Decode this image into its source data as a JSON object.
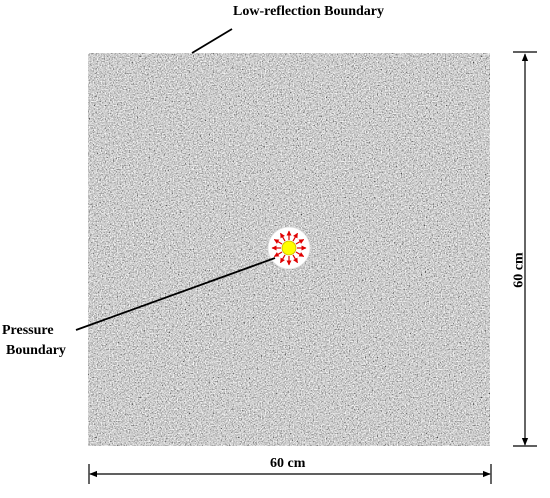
{
  "labels": {
    "top": "Low-reflection Boundary",
    "pressure_line1": "Pressure",
    "pressure_line2": "Boundary",
    "width": "60 cm",
    "height": "60 cm"
  },
  "colors": {
    "rock_base": "#9a9a9a",
    "borehole": "#ffffff",
    "source": "#ffff00",
    "arrows": "#e00000",
    "lines": "#000000"
  }
}
